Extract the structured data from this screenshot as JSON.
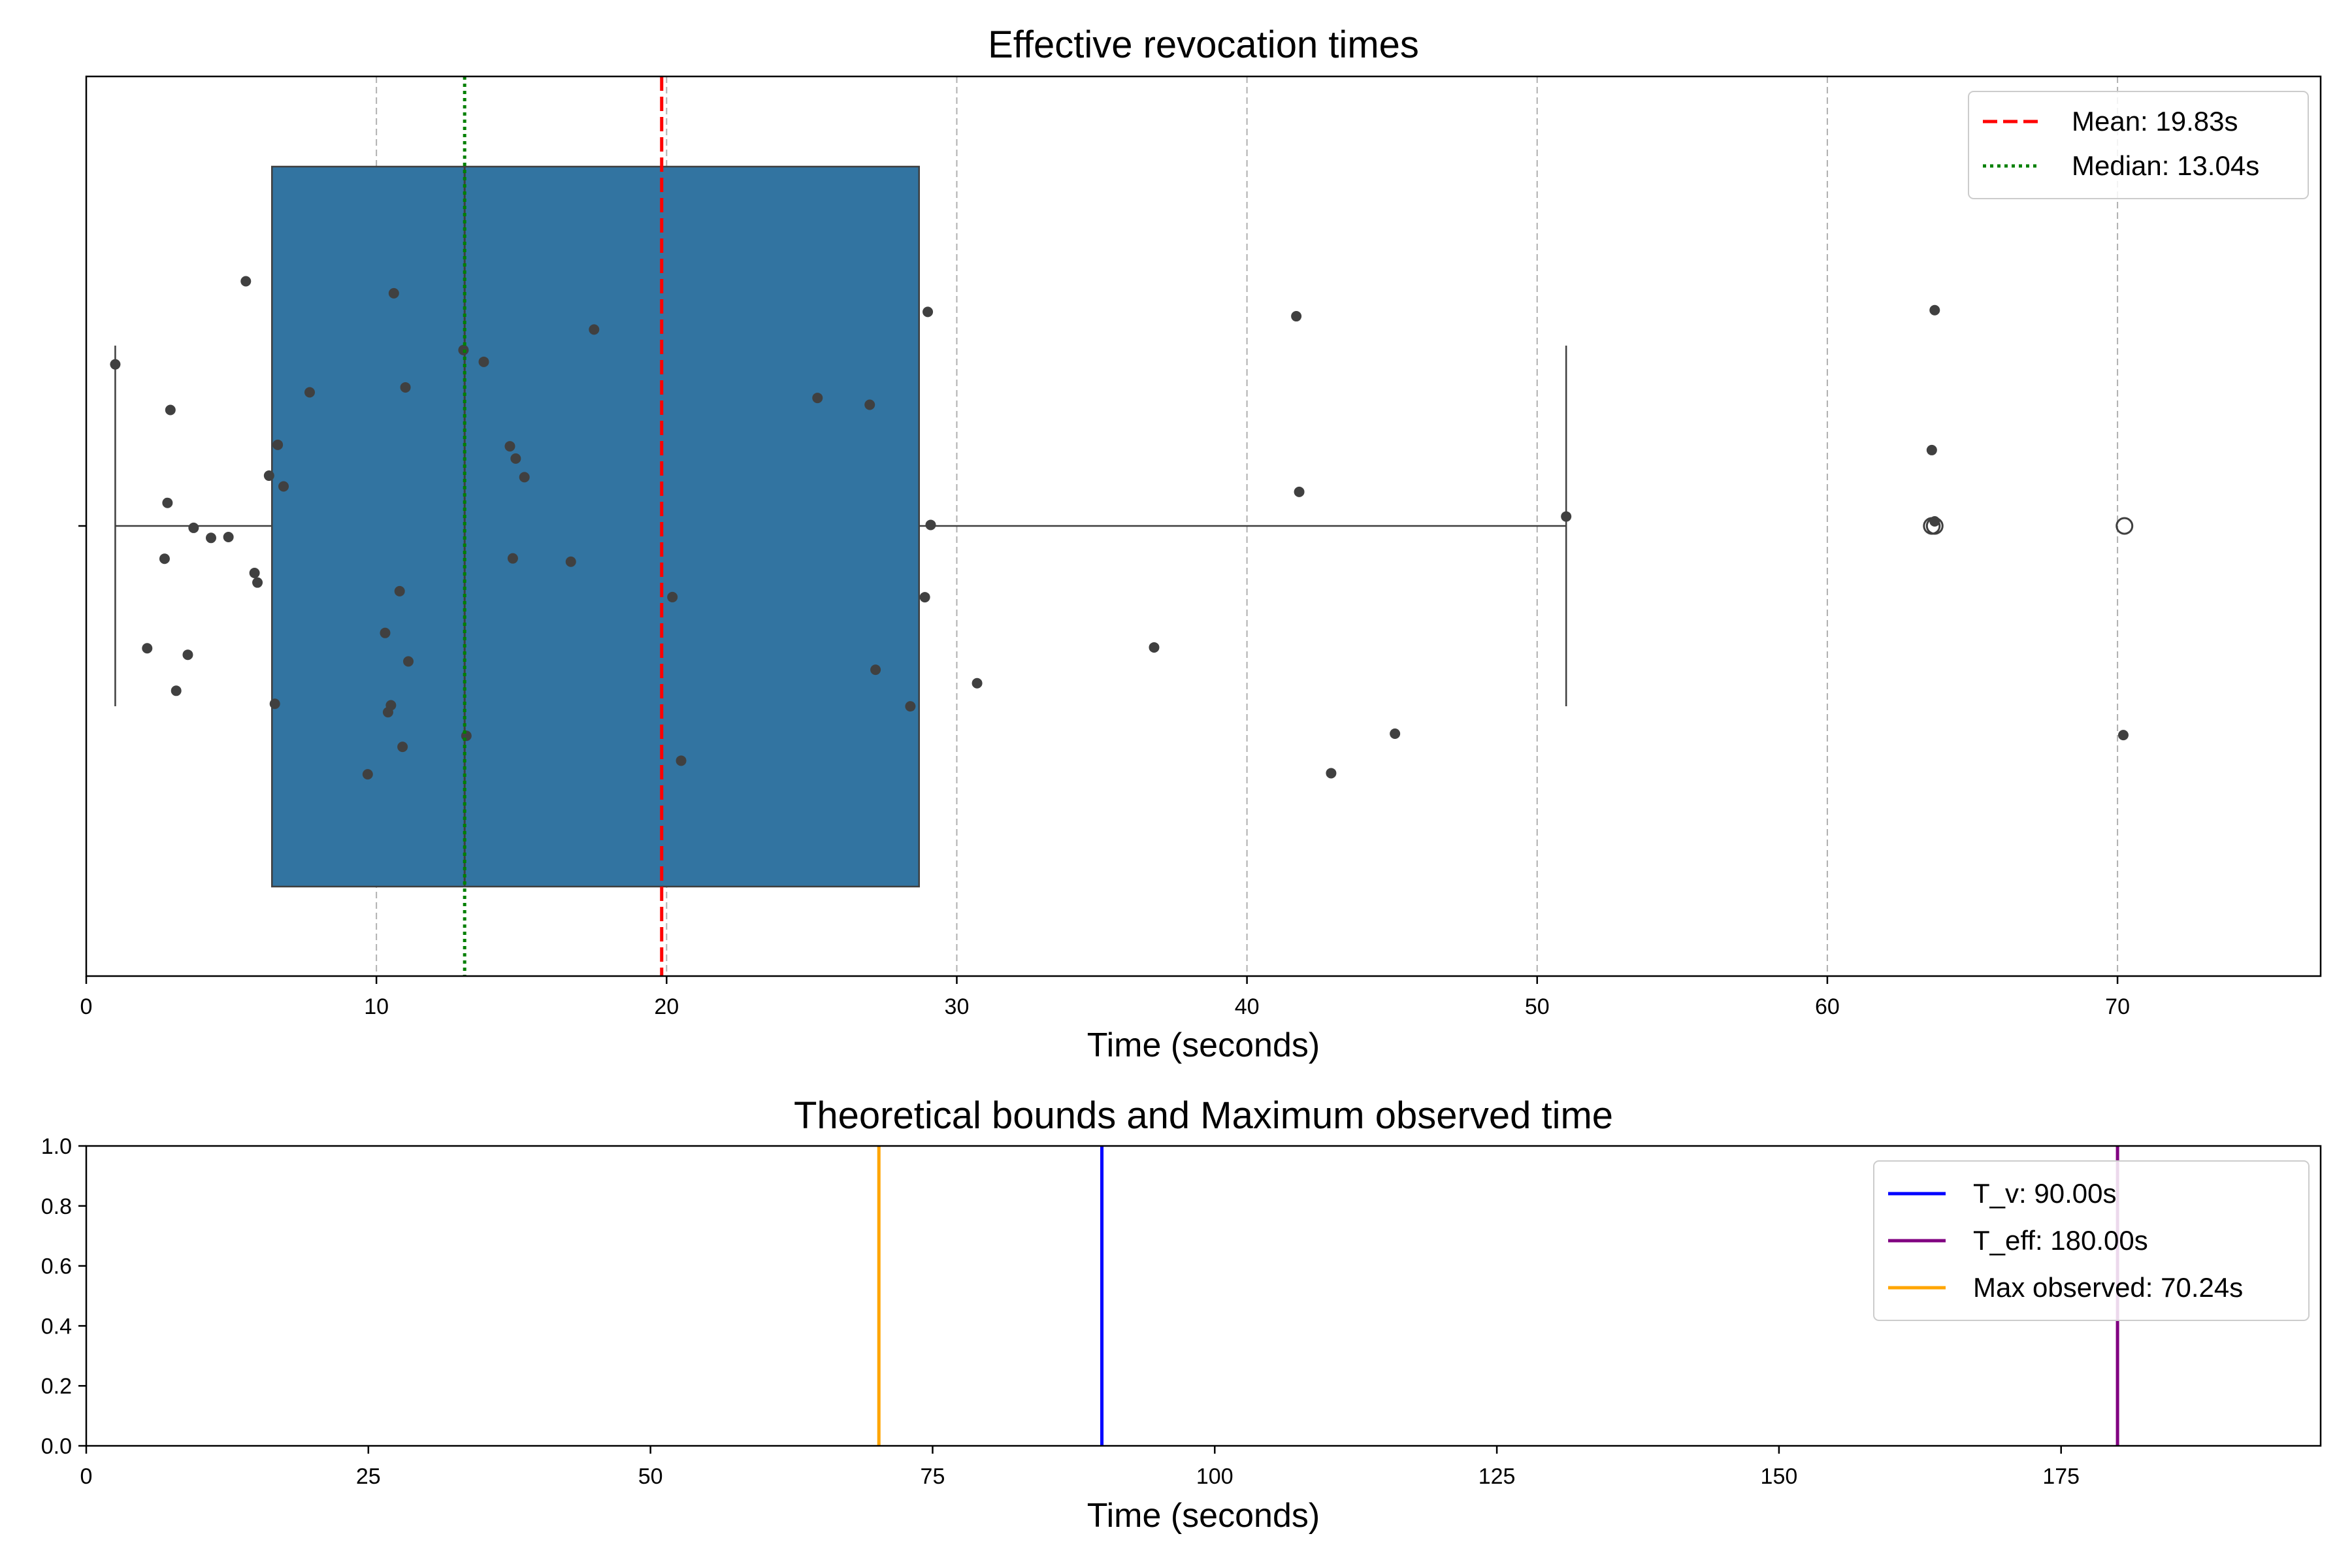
{
  "chart_data": [
    {
      "type": "box",
      "title": "Effective revocation times",
      "xlabel": "Time (seconds)",
      "ylabel": "",
      "xlim": [
        0,
        77
      ],
      "xticks": [
        0,
        10,
        20,
        30,
        40,
        50,
        60,
        70
      ],
      "grid": "x, dashed",
      "box_color": "#3274a1",
      "point_color": "#404040",
      "box": {
        "whisker_low": 1.0,
        "q1": 6.4,
        "median": 13.04,
        "q3": 28.7,
        "whisker_high": 51.0,
        "outliers": [
          63.6,
          63.7,
          70.24
        ]
      },
      "points": [
        1.0,
        2.1,
        2.7,
        2.8,
        2.9,
        3.1,
        3.5,
        3.7,
        4.3,
        4.9,
        5.5,
        5.8,
        5.9,
        6.3,
        6.5,
        6.6,
        6.8,
        7.7,
        9.7,
        10.3,
        10.4,
        10.5,
        10.6,
        10.8,
        10.9,
        11.0,
        11.1,
        13.0,
        13.1,
        13.7,
        14.6,
        14.7,
        14.8,
        15.1,
        16.7,
        17.5,
        20.2,
        20.5,
        25.2,
        27.0,
        27.2,
        28.4,
        28.9,
        29.0,
        29.1,
        30.7,
        36.8,
        41.7,
        41.8,
        42.9,
        45.1,
        51.0,
        63.6,
        63.7,
        63.7,
        70.2
      ],
      "lines": [
        {
          "name": "Mean: 19.83s",
          "x": 19.83,
          "color": "#ff0000",
          "style": "dashed"
        },
        {
          "name": "Median: 13.04s",
          "x": 13.04,
          "color": "#008000",
          "style": "dotted"
        }
      ],
      "legend_position": "top-right"
    },
    {
      "type": "line",
      "title": "Theoretical bounds and Maximum observed time",
      "xlabel": "Time (seconds)",
      "ylabel": "",
      "xlim": [
        0,
        198
      ],
      "ylim": [
        0,
        1
      ],
      "xticks": [
        0,
        25,
        50,
        75,
        100,
        125,
        150,
        175
      ],
      "yticks": [
        "0.0",
        "0.2",
        "0.4",
        "0.6",
        "0.8",
        "1.0"
      ],
      "series": [
        {
          "name": "T_v: 90.00s",
          "x": 90.0,
          "color": "#0000ff"
        },
        {
          "name": "T_eff: 180.00s",
          "x": 180.0,
          "color": "#800080"
        },
        {
          "name": "Max observed: 70.24s",
          "x": 70.24,
          "color": "#ffa500"
        }
      ],
      "legend_position": "top-right"
    }
  ]
}
